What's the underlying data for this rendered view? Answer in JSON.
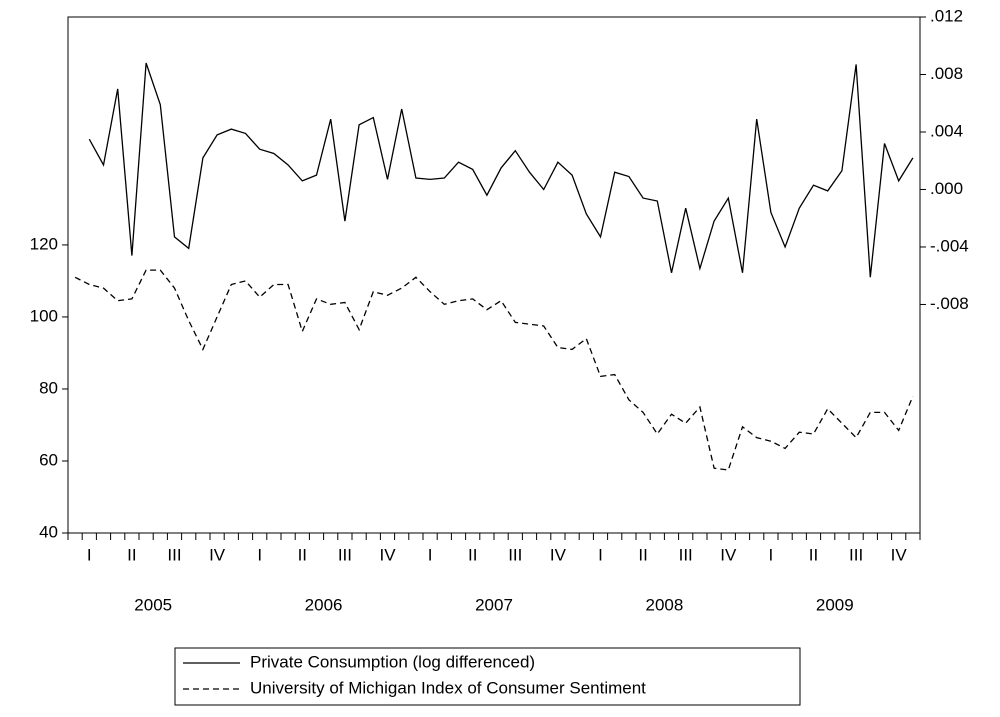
{
  "chart_data": {
    "type": "line",
    "quarters": [
      "I",
      "II",
      "III",
      "IV",
      "I",
      "II",
      "III",
      "IV",
      "I",
      "II",
      "III",
      "IV",
      "I",
      "II",
      "III",
      "IV",
      "I",
      "II",
      "III",
      "IV"
    ],
    "years": [
      "2005",
      "2006",
      "2007",
      "2008",
      "2009"
    ],
    "series": [
      {
        "name": "Private Consumption (log differenced)",
        "color": "#000000",
        "dash": "none",
        "axis": "y2",
        "values": [
          null,
          0.0035,
          0.0017,
          0.007,
          -0.0046,
          0.0088,
          0.0059,
          -0.0033,
          -0.0041,
          0.0022,
          0.0038,
          0.0042,
          0.0039,
          0.0028,
          0.0025,
          0.0017,
          0.0006,
          0.001,
          0.0049,
          -0.0022,
          0.0045,
          0.005,
          0.0007,
          0.0056,
          0.0008,
          0.0007,
          0.0008,
          0.0019,
          0.0014,
          -0.0004,
          0.0015,
          0.0027,
          0.0012,
          0.0,
          0.0019,
          0.001,
          -0.0017,
          -0.0033,
          0.0012,
          0.0009,
          -0.0006,
          -0.0008,
          -0.0058,
          -0.0013,
          -0.0055,
          -0.0022,
          -0.0006,
          -0.0058,
          0.0049,
          -0.0016,
          -0.004,
          -0.0013,
          0.0003,
          -0.0001,
          0.0013,
          0.0087,
          -0.0061,
          0.0032,
          0.0006,
          0.0022
        ]
      },
      {
        "name": "University of Michigan Index of Consumer Sentiment",
        "color": "#000000",
        "dash": "6,4",
        "axis": "y",
        "values": [
          111,
          109,
          108,
          104.5,
          105,
          113,
          113,
          108,
          99,
          91,
          100,
          109,
          110,
          105.5,
          109,
          109,
          96,
          105,
          103.5,
          104,
          96.5,
          107,
          106,
          108,
          111,
          107,
          103.5,
          104.5,
          105,
          102,
          104.5,
          98.5,
          98,
          97.5,
          91.5,
          91,
          94,
          83.5,
          84,
          77,
          73.5,
          67.5,
          73,
          70.5,
          75,
          58,
          57.5,
          69.5,
          66.5,
          65.5,
          63.5,
          68,
          67.5,
          74.5,
          70.5,
          66.5,
          73.5,
          73.5,
          68.5,
          78
        ]
      }
    ],
    "ylim": [
      40,
      183.3
    ],
    "yticks": [
      40,
      60,
      80,
      100,
      120
    ],
    "y2lim": [
      -0.0239,
      0.012
    ],
    "y2ticks": [
      {
        "value": 0.012,
        "label": ".012"
      },
      {
        "value": 0.008,
        "label": ".008"
      },
      {
        "value": 0.004,
        "label": ".004"
      },
      {
        "value": 0,
        "label": ".000"
      },
      {
        "value": -0.004,
        "label": "-.004"
      },
      {
        "value": -0.008,
        "label": "-.008"
      }
    ]
  }
}
